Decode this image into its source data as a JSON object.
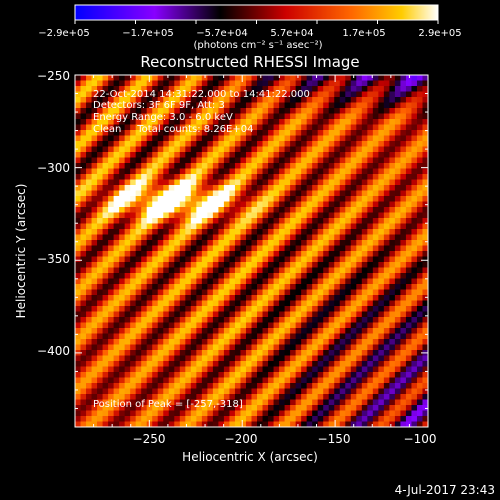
{
  "colorbar": {
    "tick_labels": [
      "−2.9e+05",
      "−1.7e+05",
      "−5.7e+04",
      "5.7e+04",
      "1.7e+05",
      "2.9e+05"
    ],
    "unit_label": "(photons cm⁻² s⁻¹ asec⁻²)",
    "vmin": -290000,
    "vmax": 290000
  },
  "chart_data": {
    "type": "heatmap",
    "title": "Reconstructed RHESSI Image",
    "xlabel": "Heliocentric X (arcsec)",
    "ylabel": "Heliocentric Y (arcsec)",
    "xlim": [
      -290,
      -100
    ],
    "ylim": [
      -440,
      -250
    ],
    "x_ticks": [
      -250,
      -200,
      -150,
      -100
    ],
    "y_ticks": [
      -250,
      -300,
      -350,
      -400
    ],
    "x_tick_labels": [
      "−250",
      "−200",
      "−150",
      "−100"
    ],
    "y_tick_labels": [
      "−250",
      "−300",
      "−350",
      "−400"
    ],
    "peak": [
      -257,
      -318
    ],
    "grid": false
  },
  "annotations": {
    "time_range": "22-Oct-2014 14:31:22.000 to 14:41:22.000",
    "detectors": "Detectors: 3F 6F 9F, Att: 3",
    "energy": "Energy Range: 3.0 - 6.0 keV",
    "clean": "Clean     Total counts: 8.26E+04",
    "peak_position": "Position of Peak = [-257,-318]"
  },
  "footer": {
    "date": "4-Jul-2017 23:43"
  }
}
